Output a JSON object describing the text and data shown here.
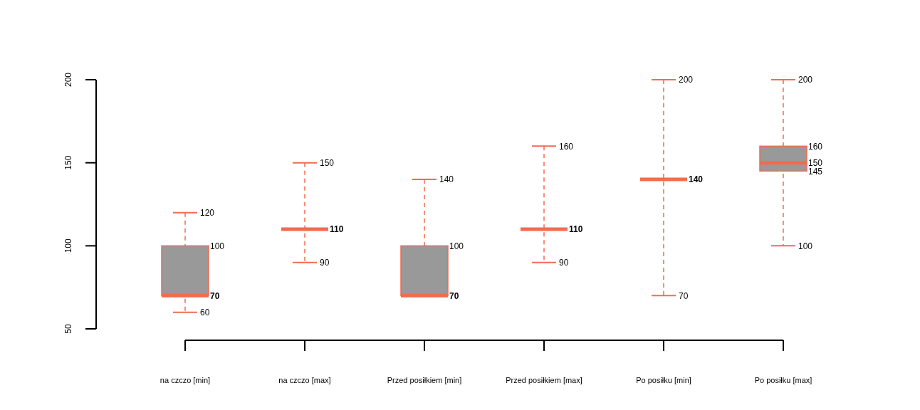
{
  "chart_data": {
    "type": "box",
    "categories": [
      "na czczo [min]",
      "na czczo [max]",
      "Przed posiłkiem [min]",
      "Przed posiłkiem [max]",
      "Po posiłku [min]",
      "Po posiłku [max]"
    ],
    "series": [
      {
        "color": "#f26b50",
        "boxes": [
          {
            "low": 60,
            "q1": 70,
            "median": 70,
            "q3": 100,
            "high": 120
          },
          {
            "low": 90,
            "q1": 110,
            "median": 110,
            "q3": 110,
            "high": 150
          },
          {
            "low": 70,
            "q1": 70,
            "median": 70,
            "q3": 100,
            "high": 140
          },
          {
            "low": 90,
            "q1": 110,
            "median": 110,
            "q3": 110,
            "high": 160
          },
          {
            "low": 70,
            "q1": 140,
            "median": 140,
            "q3": 140,
            "high": 200
          },
          {
            "low": 100,
            "q1": 145,
            "median": 150,
            "q3": 160,
            "high": 200
          }
        ]
      }
    ],
    "annotations": [
      {
        "text": "120",
        "x": "na czczo [min]",
        "y": 120
      },
      {
        "text": "100",
        "x": "na czczo [min]",
        "y": 100
      },
      {
        "text": "70",
        "x": "na czczo [min]",
        "y": 70
      },
      {
        "text": "60",
        "x": "na czczo [min]",
        "y": 60
      },
      {
        "text": "150",
        "x": "na czczo [max]",
        "y": 150
      },
      {
        "text": "110",
        "x": "na czczo [max]",
        "y": 110
      },
      {
        "text": "90",
        "x": "na czczo [max]",
        "y": 90
      },
      {
        "text": "140",
        "x": "Przed posiłkiem [min]",
        "y": 140
      },
      {
        "text": "100",
        "x": "Przed posiłkiem [min]",
        "y": 100
      },
      {
        "text": "70",
        "x": "Przed posiłkiem [min]",
        "y": 70
      },
      {
        "text": "160",
        "x": "Przed posiłkiem [max]",
        "y": 160
      },
      {
        "text": "110",
        "x": "Przed posiłkiem [max]",
        "y": 110
      },
      {
        "text": "90",
        "x": "Przed posiłkiem [max]",
        "y": 90
      },
      {
        "text": "200",
        "x": "Po posiłku [min]",
        "y": 200
      },
      {
        "text": "140",
        "x": "Po posiłku [min]",
        "y": 140
      },
      {
        "text": "70",
        "x": "Po posiłku [min]",
        "y": 70
      },
      {
        "text": "200",
        "x": "Po posiłku [max]",
        "y": 200
      },
      {
        "text": "160",
        "x": "Po posiłku [max]",
        "y": 160
      },
      {
        "text": "150",
        "x": "Po posiłku [max]",
        "y": 150
      },
      {
        "text": "145",
        "x": "Po posiłku [max]",
        "y": 145
      },
      {
        "text": "100",
        "x": "Po posiłku [max]",
        "y": 100
      }
    ],
    "ylim": [
      50,
      200
    ],
    "yticks": [
      50,
      100,
      150,
      200
    ],
    "line_style": "dashed"
  }
}
